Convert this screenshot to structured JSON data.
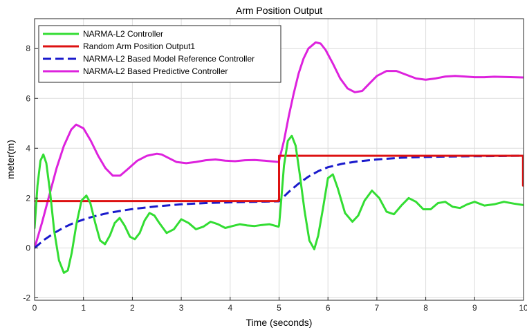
{
  "chart_data": {
    "type": "line",
    "title": "Arm Position Output",
    "xlabel": "Time (seconds)",
    "ylabel": "meter(m)",
    "xlim": [
      0,
      10
    ],
    "ylim": [
      -2.1,
      9.2
    ],
    "xticks": [
      0,
      1,
      2,
      3,
      4,
      5,
      6,
      7,
      8,
      9,
      10
    ],
    "yticks": [
      -2,
      0,
      2,
      4,
      6,
      8
    ],
    "grid": true,
    "legend_position": "top-left",
    "series": [
      {
        "name": "NARMA-L2 Controller",
        "color": "#33dd33",
        "dash": "solid",
        "x": [
          0,
          0.06,
          0.12,
          0.18,
          0.24,
          0.32,
          0.4,
          0.5,
          0.6,
          0.68,
          0.76,
          0.86,
          0.96,
          1.06,
          1.14,
          1.24,
          1.34,
          1.44,
          1.54,
          1.64,
          1.74,
          1.84,
          1.95,
          2.05,
          2.15,
          2.25,
          2.35,
          2.45,
          2.55,
          2.7,
          2.85,
          3.0,
          3.15,
          3.3,
          3.45,
          3.6,
          3.75,
          3.9,
          4.05,
          4.2,
          4.35,
          4.5,
          4.65,
          4.8,
          4.99,
          5.0,
          5.04,
          5.1,
          5.18,
          5.26,
          5.34,
          5.42,
          5.52,
          5.62,
          5.72,
          5.8,
          5.9,
          6.0,
          6.1,
          6.2,
          6.35,
          6.5,
          6.62,
          6.75,
          6.9,
          7.05,
          7.2,
          7.35,
          7.5,
          7.65,
          7.8,
          7.95,
          8.1,
          8.25,
          8.4,
          8.55,
          8.7,
          8.85,
          9.0,
          9.2,
          9.4,
          9.6,
          9.8,
          10.0
        ],
        "y": [
          0.8,
          2.5,
          3.5,
          3.75,
          3.4,
          2.2,
          0.7,
          -0.5,
          -1.0,
          -0.9,
          -0.2,
          1.0,
          1.9,
          2.1,
          1.8,
          1.0,
          0.3,
          0.15,
          0.5,
          1.0,
          1.2,
          0.9,
          0.45,
          0.35,
          0.6,
          1.1,
          1.4,
          1.3,
          1.0,
          0.6,
          0.75,
          1.15,
          1.0,
          0.75,
          0.85,
          1.05,
          0.95,
          0.8,
          0.88,
          0.95,
          0.9,
          0.88,
          0.92,
          0.95,
          0.85,
          0.9,
          1.8,
          3.3,
          4.3,
          4.5,
          4.1,
          3.0,
          1.5,
          0.3,
          -0.05,
          0.5,
          1.6,
          2.8,
          2.95,
          2.4,
          1.4,
          1.05,
          1.3,
          1.9,
          2.3,
          2.0,
          1.45,
          1.35,
          1.7,
          2.0,
          1.85,
          1.55,
          1.55,
          1.8,
          1.85,
          1.65,
          1.6,
          1.75,
          1.85,
          1.7,
          1.75,
          1.85,
          1.78,
          1.72
        ]
      },
      {
        "name": "Random Arm Position Output1",
        "color": "#dd1111",
        "dash": "solid",
        "x": [
          0,
          4.98,
          4.98,
          5.0,
          5.0,
          9.99,
          9.99
        ],
        "y": [
          1.88,
          1.88,
          1.9,
          1.9,
          3.7,
          3.7,
          2.5
        ]
      },
      {
        "name": "NARMA-L2 Based Model Reference Controller",
        "color": "#1a1acc",
        "dash": "dashed",
        "x": [
          0,
          0.2,
          0.4,
          0.6,
          0.8,
          1.0,
          1.2,
          1.5,
          1.8,
          2.0,
          2.5,
          3.0,
          3.5,
          4.0,
          4.5,
          5.0,
          5.2,
          5.4,
          5.6,
          5.8,
          6.0,
          6.3,
          6.6,
          7.0,
          7.5,
          8.0,
          8.5,
          9.0,
          9.5,
          10.0
        ],
        "y": [
          0.0,
          0.33,
          0.6,
          0.82,
          1.0,
          1.14,
          1.26,
          1.4,
          1.5,
          1.56,
          1.67,
          1.75,
          1.8,
          1.83,
          1.85,
          1.87,
          2.25,
          2.58,
          2.86,
          3.08,
          3.24,
          3.38,
          3.47,
          3.55,
          3.62,
          3.65,
          3.67,
          3.68,
          3.69,
          3.7
        ]
      },
      {
        "name": "NARMA-L2 Based Predictive Controller",
        "color": "#dd22dd",
        "dash": "solid",
        "x": [
          0,
          0.15,
          0.3,
          0.45,
          0.6,
          0.75,
          0.85,
          1.0,
          1.15,
          1.3,
          1.45,
          1.6,
          1.75,
          1.9,
          2.1,
          2.3,
          2.5,
          2.6,
          2.75,
          2.9,
          3.1,
          3.3,
          3.5,
          3.7,
          3.9,
          4.1,
          4.3,
          4.5,
          4.7,
          4.99,
          5.0,
          5.1,
          5.2,
          5.3,
          5.4,
          5.5,
          5.6,
          5.75,
          5.85,
          5.95,
          6.1,
          6.25,
          6.4,
          6.55,
          6.7,
          6.85,
          7.0,
          7.2,
          7.4,
          7.6,
          7.8,
          8.0,
          8.2,
          8.4,
          8.6,
          8.8,
          9.0,
          9.2,
          9.4,
          9.6,
          9.8,
          10.0
        ],
        "y": [
          0.0,
          1.0,
          2.1,
          3.2,
          4.1,
          4.75,
          4.95,
          4.8,
          4.3,
          3.7,
          3.2,
          2.9,
          2.9,
          3.15,
          3.5,
          3.7,
          3.78,
          3.75,
          3.6,
          3.45,
          3.4,
          3.45,
          3.52,
          3.55,
          3.5,
          3.48,
          3.52,
          3.53,
          3.5,
          3.45,
          3.5,
          4.3,
          5.3,
          6.2,
          7.0,
          7.6,
          8.0,
          8.25,
          8.2,
          7.95,
          7.4,
          6.8,
          6.4,
          6.25,
          6.3,
          6.6,
          6.9,
          7.1,
          7.1,
          6.95,
          6.8,
          6.75,
          6.8,
          6.88,
          6.9,
          6.88,
          6.85,
          6.85,
          6.87,
          6.86,
          6.85,
          6.84
        ]
      }
    ]
  }
}
